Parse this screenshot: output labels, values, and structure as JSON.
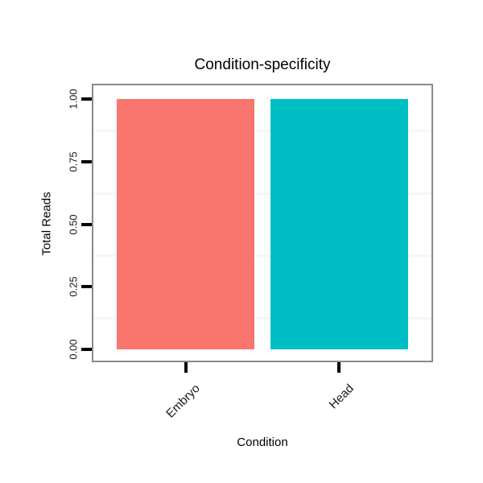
{
  "chart_data": {
    "type": "bar",
    "title": "Condition-specificity",
    "xlabel": "Condition",
    "ylabel": "Total Reads",
    "categories": [
      "Embryo",
      "Head"
    ],
    "values": [
      1.0,
      1.0
    ],
    "bar_colors": [
      "#F8766D",
      "#00BFC4"
    ],
    "ylim": [
      0,
      1
    ],
    "yticks": [
      {
        "value": 0.0,
        "label": "0.00"
      },
      {
        "value": 0.25,
        "label": "0.25"
      },
      {
        "value": 0.5,
        "label": "0.50"
      },
      {
        "value": 0.75,
        "label": "0.75"
      },
      {
        "value": 1.0,
        "label": "1.00"
      }
    ],
    "minor_grid_values": [
      0.125,
      0.375,
      0.625,
      0.875
    ],
    "legend": "none",
    "grid": "minor-only",
    "x_tick_label_rotation_deg": 45,
    "y_tick_label_rotation_deg": 90,
    "panel_border_color": "#8a8a8a",
    "tick_color": "#000000",
    "minor_grid_color": "#f7f7f7"
  }
}
